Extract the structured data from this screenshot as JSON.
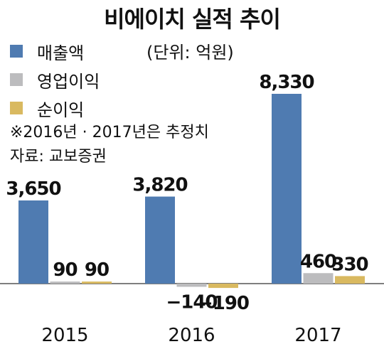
{
  "title": "비에이치 실적 추이",
  "unit": "(단위: 억원)",
  "notes": [
    "※2016년 · 2017년은 추정치",
    "자료: 교보증권"
  ],
  "chart_data": {
    "type": "bar",
    "categories": [
      "2015",
      "2016",
      "2017"
    ],
    "series": [
      {
        "name": "매출액",
        "color": "#4f7bb1",
        "values": [
          3650,
          3820,
          8330
        ],
        "labels": [
          "3,650",
          "3,820",
          "8,330"
        ]
      },
      {
        "name": "영업이익",
        "color": "#bcbcbe",
        "values": [
          90,
          -140,
          460
        ],
        "labels": [
          "90",
          "−140",
          "460"
        ]
      },
      {
        "name": "순이익",
        "color": "#d9b960",
        "values": [
          90,
          -190,
          330
        ],
        "labels": [
          "90",
          "−190",
          "330"
        ]
      }
    ],
    "ylim": [
      -600,
      8330
    ],
    "legend_position": "top-left",
    "grid": false
  }
}
